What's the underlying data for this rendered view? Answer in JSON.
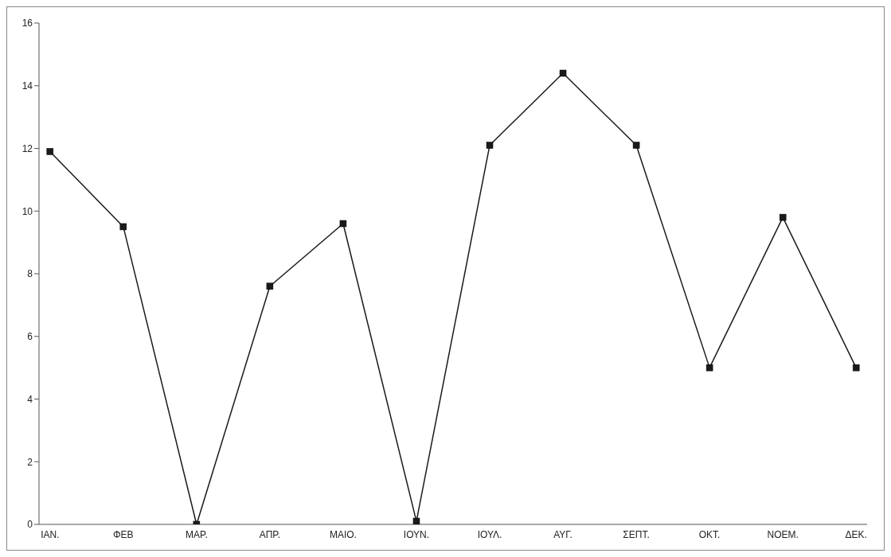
{
  "chart_data": {
    "type": "line",
    "categories": [
      "ΙΑΝ.",
      "ΦΕΒ",
      "ΜΑΡ.",
      "ΑΠΡ.",
      "ΜΑΙΟ.",
      "ΙΟΥΝ.",
      "ΙΟΥΛ.",
      "ΑΥΓ.",
      "ΣΕΠΤ.",
      "ΟΚΤ.",
      "ΝΟΕΜ.",
      "ΔΕΚ."
    ],
    "series": [
      {
        "color": "#1a1a1a",
        "values": [
          11.9,
          9.5,
          0,
          7.6,
          9.6,
          0.1,
          12.1,
          14.4,
          12.1,
          5.0,
          9.8,
          5.0
        ]
      }
    ],
    "ylim": [
      0,
      16
    ],
    "yticks": [
      0,
      2,
      4,
      6,
      8,
      10,
      12,
      14,
      16
    ],
    "grid": false,
    "legend": false,
    "marker": "square",
    "line_style": "solid"
  }
}
